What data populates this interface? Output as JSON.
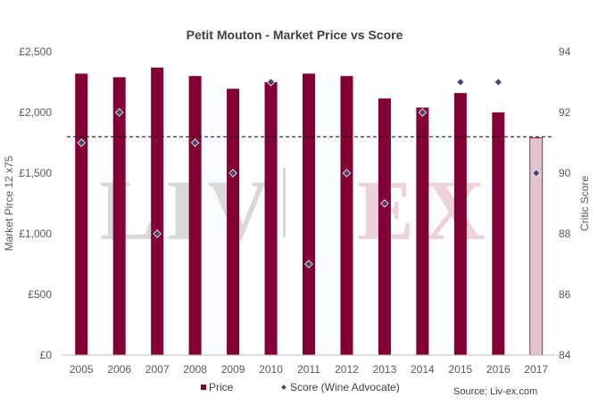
{
  "chart_data": {
    "type": "bar",
    "title": "Petit Mouton - Market Price vs Score",
    "categories": [
      "2005",
      "2006",
      "2007",
      "2008",
      "2009",
      "2010",
      "2011",
      "2012",
      "2013",
      "2014",
      "2015",
      "2016",
      "2017"
    ],
    "series": [
      {
        "name": "Price",
        "axis": "left",
        "values": [
          2320,
          2290,
          2370,
          2300,
          2195,
          2250,
          2320,
          2300,
          2115,
          2040,
          2160,
          2000,
          1790
        ],
        "colors": [
          "#820033",
          "#820033",
          "#820033",
          "#820033",
          "#820033",
          "#820033",
          "#820033",
          "#820033",
          "#820033",
          "#820033",
          "#820033",
          "#820033",
          "#dfc3ce"
        ]
      },
      {
        "name": "Score (Wine Advocate)",
        "axis": "right",
        "type": "scatter",
        "values": [
          91,
          92,
          88,
          91,
          90,
          93,
          87,
          90,
          89,
          92,
          93,
          93,
          90
        ]
      }
    ],
    "reference_line": {
      "value": 91.2,
      "axis": "right",
      "style": "dashed"
    },
    "ylabel": "Market Pirce 12 x75",
    "y2label": "Critic Score",
    "y_ticks": [
      "£0",
      "£500",
      "£1,000",
      "£1,500",
      "£2,000",
      "£2,500"
    ],
    "y_tick_values": [
      0,
      500,
      1000,
      1500,
      2000,
      2500
    ],
    "y2_ticks": [
      "84",
      "86",
      "88",
      "90",
      "92",
      "94"
    ],
    "y2_tick_values": [
      84,
      86,
      88,
      90,
      92,
      94
    ],
    "ylim": [
      0,
      2500
    ],
    "y2lim": [
      84,
      94
    ],
    "grid": false,
    "legend_position": "bottom",
    "legend": [
      "Price",
      "Score (Wine Advocate)"
    ],
    "source": "Source: Liv-ex.com",
    "watermark": [
      "LIV",
      "EX"
    ],
    "colors": {
      "bar": "#820033",
      "bar_last": "#dfc3ce",
      "marker": "#4b4370",
      "reference": "#000000",
      "watermark_left": "#d9d9d9",
      "watermark_right": "#ebd3d9"
    }
  }
}
